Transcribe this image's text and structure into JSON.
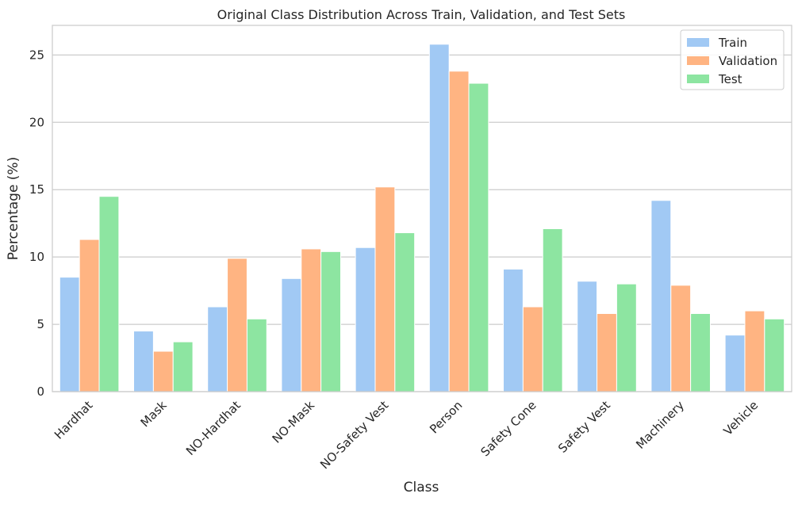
{
  "chart_data": {
    "type": "bar",
    "title": "Original Class Distribution Across Train, Validation, and Test Sets",
    "xlabel": "Class",
    "ylabel": "Percentage (%)",
    "ylim": [
      0,
      27.2
    ],
    "yticks": [
      0,
      5,
      10,
      15,
      20,
      25
    ],
    "grid": true,
    "legend_position": "top-right",
    "categories": [
      "Hardhat",
      "Mask",
      "NO-Hardhat",
      "NO-Mask",
      "NO-Safety Vest",
      "Person",
      "Safety Cone",
      "Safety Vest",
      "Machinery",
      "Vehicle"
    ],
    "series": [
      {
        "name": "Train",
        "color": "#a1c9f4",
        "values": [
          8.5,
          4.5,
          6.3,
          8.4,
          10.7,
          25.8,
          9.1,
          8.2,
          14.2,
          4.2
        ]
      },
      {
        "name": "Validation",
        "color": "#ffb482",
        "values": [
          11.3,
          3.0,
          9.9,
          10.6,
          15.2,
          23.8,
          6.3,
          5.8,
          7.9,
          6.0
        ]
      },
      {
        "name": "Test",
        "color": "#8de5a1",
        "values": [
          14.5,
          3.7,
          5.4,
          10.4,
          11.8,
          22.9,
          12.1,
          8.0,
          5.8,
          5.4
        ]
      }
    ]
  }
}
